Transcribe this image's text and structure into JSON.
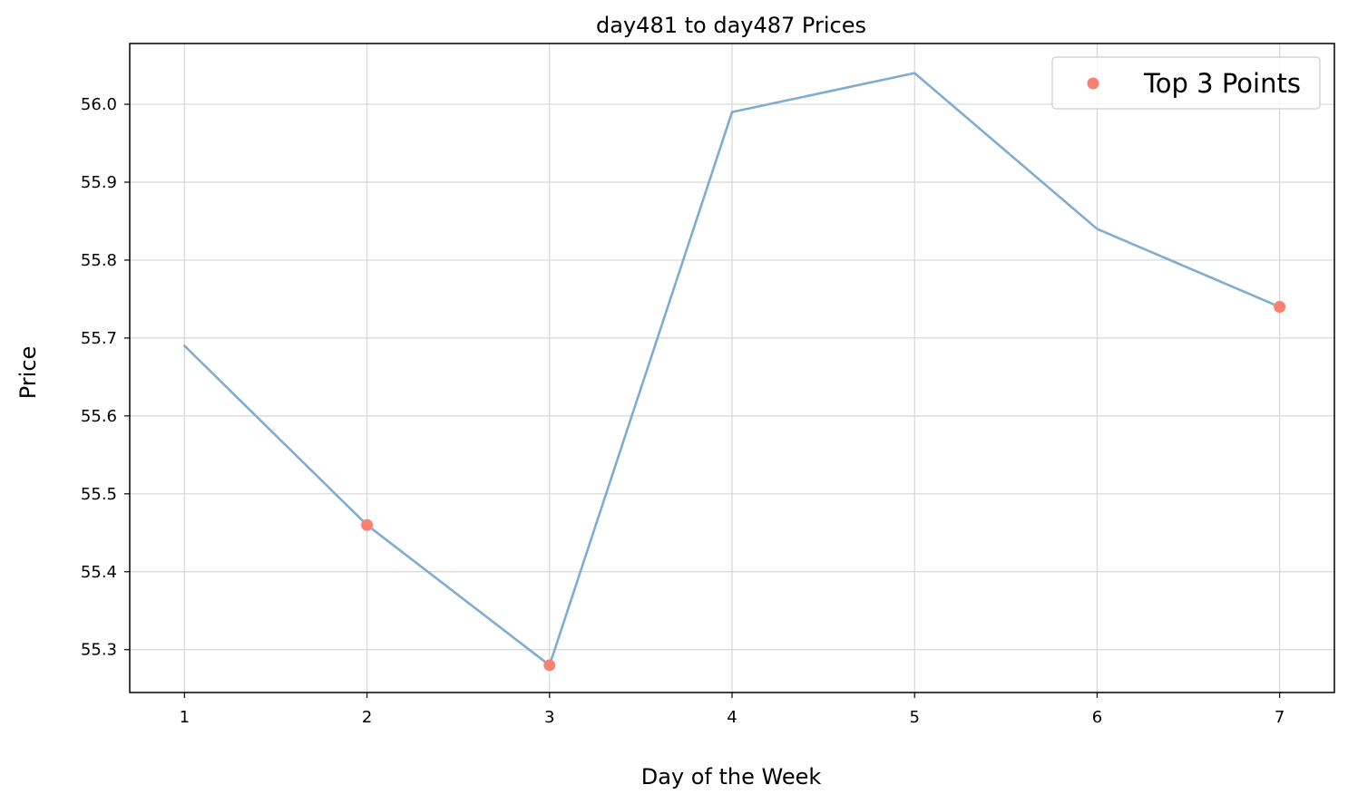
{
  "chart_data": {
    "type": "line",
    "title": "day481 to day487 Prices",
    "xlabel": "Day of the Week",
    "ylabel": "Price",
    "x": [
      1,
      2,
      3,
      4,
      5,
      6,
      7
    ],
    "xticks": [
      "1",
      "2",
      "3",
      "4",
      "5",
      "6",
      "7"
    ],
    "yticks": [
      "55.3",
      "55.4",
      "55.5",
      "55.6",
      "55.7",
      "55.8",
      "55.9",
      "56.0"
    ],
    "ylim": [
      55.245,
      56.078
    ],
    "xlim": [
      0.7,
      7.3
    ],
    "grid": true,
    "legend_position": "top-right",
    "series": [
      {
        "type": "line",
        "values": [
          55.69,
          55.46,
          55.28,
          55.99,
          56.04,
          55.84,
          55.74
        ],
        "color": "#7eadd1"
      },
      {
        "type": "scatter",
        "name": "Top 3 Points",
        "x": [
          2,
          3,
          7
        ],
        "values": [
          55.46,
          55.28,
          55.74
        ],
        "color": "#fa8072"
      }
    ]
  }
}
